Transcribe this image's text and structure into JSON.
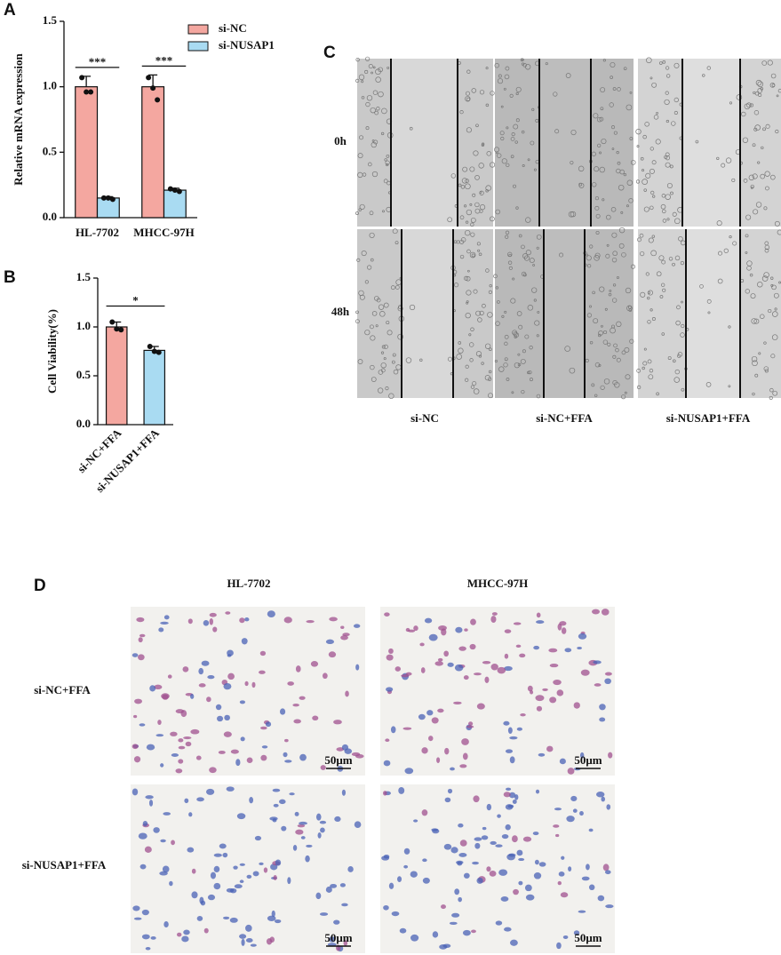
{
  "panels": [
    "A",
    "B",
    "C",
    "D"
  ],
  "chart_data": [
    {
      "type": "bar",
      "ylabel": "Relative mRNA expression",
      "categories": [
        "HL-7702",
        "MHCC-97H"
      ],
      "series": [
        {
          "name": "si-NC",
          "color": "#f4a7a0",
          "values": [
            1.0,
            1.0
          ],
          "errors": [
            0.08,
            0.09
          ],
          "points": [
            [
              1.07,
              0.96,
              0.96
            ],
            [
              1.07,
              0.99,
              0.9
            ]
          ]
        },
        {
          "name": "si-NUSAP1",
          "color": "#a9dbf2",
          "values": [
            0.15,
            0.21
          ],
          "errors": [
            0.01,
            0.015
          ],
          "points": [
            [
              0.15,
              0.15,
              0.14
            ],
            [
              0.22,
              0.21,
              0.2
            ]
          ]
        }
      ],
      "annotations": [
        "***",
        "***"
      ],
      "ylim": [
        0,
        1.5
      ],
      "yticks": [
        {
          "value": 0,
          "label": "0.0"
        },
        0.5,
        {
          "value": 1,
          "label": "1.0"
        },
        1.5
      ]
    },
    {
      "type": "bar",
      "ylabel": "Cell Viability(%)",
      "categories": [
        "si-NC+FFA",
        "si-NUSAP1+FFA"
      ],
      "values": [
        1.0,
        0.76
      ],
      "errors": [
        0.05,
        0.04
      ],
      "colors": [
        "#f4a7a0",
        "#a9dbf2"
      ],
      "points": [
        [
          1.05,
          0.98,
          0.97
        ],
        [
          0.8,
          0.75,
          0.74
        ]
      ],
      "annotations": [
        "*"
      ],
      "ylim": [
        0,
        1.5
      ],
      "yticks": [
        {
          "value": 0,
          "label": "0.0"
        },
        0.5,
        {
          "value": 1,
          "label": "1.0"
        },
        1.5
      ]
    }
  ],
  "scratch_assay": {
    "rows": [
      "0h",
      "48h"
    ],
    "columns": [
      "si-NC",
      "si-NC+FFA",
      "si-NUSAP1+FFA"
    ]
  },
  "staining": {
    "columns": [
      "HL-7702",
      "MHCC-97H"
    ],
    "rows": [
      "si-NC+FFA",
      "si-NUSAP1+FFA"
    ],
    "scale_bars": [
      "50μm",
      "50μm",
      "50μm",
      "50μm"
    ]
  }
}
